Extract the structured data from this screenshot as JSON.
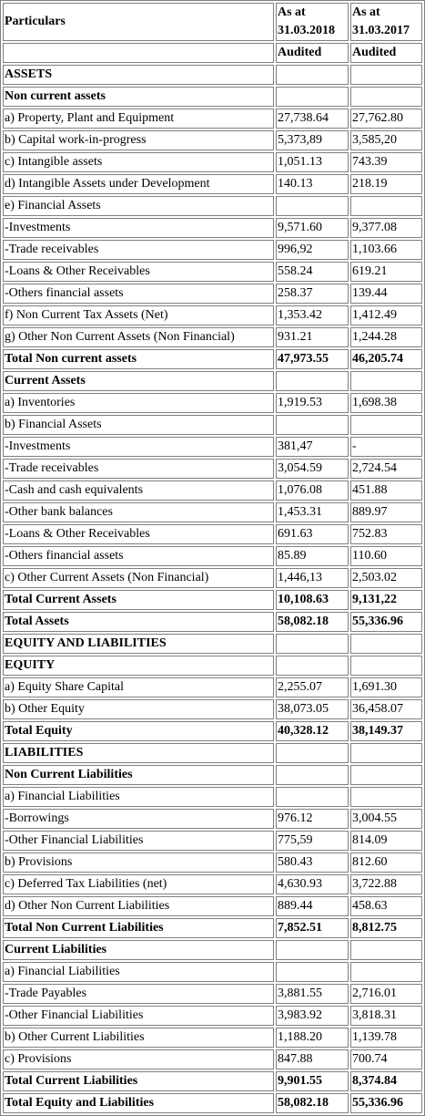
{
  "header": {
    "particulars": "Particulars",
    "col1_line1": "As at",
    "col1_line2": "31.03.2018",
    "col2_line1": "As at",
    "col2_line2": "31.03.2017",
    "col1_status": "Audited",
    "col2_status": "Audited"
  },
  "rows": [
    {
      "label": "ASSETS",
      "v1": "",
      "v2": "",
      "bold": true
    },
    {
      "label": "Non current assets",
      "v1": "",
      "v2": "",
      "bold": true
    },
    {
      "label": "a) Property, Plant and Equipment",
      "v1": "27,738.64",
      "v2": "27,762.80",
      "bold": false
    },
    {
      "label": "b) Capital work-in-progress",
      "v1": "5,373,89",
      "v2": "3,585,20",
      "bold": false
    },
    {
      "label": "c) Intangible assets",
      "v1": "1,051.13",
      "v2": "743.39",
      "bold": false
    },
    {
      "label": "d) Intangible Assets under Development",
      "v1": "140.13",
      "v2": "218.19",
      "bold": false
    },
    {
      "label": "e) Financial Assets",
      "v1": "",
      "v2": "",
      "bold": false
    },
    {
      "label": "-Investments",
      "v1": "9,571.60",
      "v2": "9,377.08",
      "bold": false
    },
    {
      "label": "-Trade receivables",
      "v1": "996,92",
      "v2": "1,103.66",
      "bold": false
    },
    {
      "label": "-Loans & Other Receivables",
      "v1": "558.24",
      "v2": "619.21",
      "bold": false
    },
    {
      "label": "-Others financial assets",
      "v1": "258.37",
      "v2": "139.44",
      "bold": false
    },
    {
      "label": "f) Non Current Tax Assets (Net)",
      "v1": "1,353.42",
      "v2": "1,412.49",
      "bold": false
    },
    {
      "label": "g) Other Non Current Assets (Non Financial)",
      "v1": "931.21",
      "v2": "1,244.28",
      "bold": false
    },
    {
      "label": "Total Non current assets",
      "v1": "47,973.55",
      "v2": "46,205.74",
      "bold": true
    },
    {
      "label": "Current Assets",
      "v1": "",
      "v2": "",
      "bold": true
    },
    {
      "label": "a) Inventories",
      "v1": "1,919.53",
      "v2": "1,698.38",
      "bold": false
    },
    {
      "label": "b) Financial Assets",
      "v1": "",
      "v2": "",
      "bold": false
    },
    {
      "label": "-Investments",
      "v1": "381,47",
      "v2": "-",
      "bold": false
    },
    {
      "label": "-Trade receivables",
      "v1": "3,054.59",
      "v2": "2,724.54",
      "bold": false
    },
    {
      "label": "-Cash and cash equivalents",
      "v1": "1,076.08",
      "v2": "451.88",
      "bold": false
    },
    {
      "label": "-Other bank balances",
      "v1": "1,453.31",
      "v2": "889.97",
      "bold": false
    },
    {
      "label": "-Loans & Other Receivables",
      "v1": "691.63",
      "v2": "752.83",
      "bold": false
    },
    {
      "label": "-Others financial assets",
      "v1": "85.89",
      "v2": "110.60",
      "bold": false
    },
    {
      "label": "c) Other Current Assets (Non Financial)",
      "v1": "1,446,13",
      "v2": "2,503.02",
      "bold": false
    },
    {
      "label": "Total Current Assets",
      "v1": "10,108.63",
      "v2": "9,131,22",
      "bold": true
    },
    {
      "label": "Total Assets",
      "v1": "58,082.18",
      "v2": "55,336.96",
      "bold": true
    },
    {
      "label": "EQUITY AND LIABILITIES",
      "v1": "",
      "v2": "",
      "bold": true
    },
    {
      "label": "EQUITY",
      "v1": "",
      "v2": "",
      "bold": true
    },
    {
      "label": "a) Equity Share Capital",
      "v1": "2,255.07",
      "v2": "1,691.30",
      "bold": false
    },
    {
      "label": "b) Other Equity",
      "v1": "38,073.05",
      "v2": "36,458.07",
      "bold": false
    },
    {
      "label": "Total Equity",
      "v1": "40,328.12",
      "v2": "38,149.37",
      "bold": true
    },
    {
      "label": "LIABILITIES",
      "v1": "",
      "v2": "",
      "bold": true
    },
    {
      "label": "Non Current Liabilities",
      "v1": "",
      "v2": "",
      "bold": true
    },
    {
      "label": "a) Financial Liabilities",
      "v1": "",
      "v2": "",
      "bold": false
    },
    {
      "label": "-Borrowings",
      "v1": "976.12",
      "v2": "3,004.55",
      "bold": false
    },
    {
      "label": "-Other Financial Liabilities",
      "v1": "775,59",
      "v2": "814.09",
      "bold": false
    },
    {
      "label": "b) Provisions",
      "v1": "580.43",
      "v2": "812.60",
      "bold": false
    },
    {
      "label": "c) Deferred Tax Liabilities (net)",
      "v1": "4,630.93",
      "v2": "3,722.88",
      "bold": false
    },
    {
      "label": "d) Other Non Current Liabilities",
      "v1": "889.44",
      "v2": "458.63",
      "bold": false
    },
    {
      "label": "Total Non Current Liabilities",
      "v1": "7,852.51",
      "v2": "8,812.75",
      "bold": true
    },
    {
      "label": "Current Liabilities",
      "v1": "",
      "v2": "",
      "bold": true
    },
    {
      "label": "a) Financial Liabilities",
      "v1": "",
      "v2": "",
      "bold": false
    },
    {
      "label": "-Trade Payables",
      "v1": "3,881.55",
      "v2": "2,716.01",
      "bold": false
    },
    {
      "label": "-Other Financial Liabilities",
      "v1": "3,983.92",
      "v2": "3,818.31",
      "bold": false
    },
    {
      "label": "b) Other Current Liabilities",
      "v1": "1,188.20",
      "v2": "1,139.78",
      "bold": false
    },
    {
      "label": "c) Provisions",
      "v1": "847.88",
      "v2": "700.74",
      "bold": false
    },
    {
      "label": "Total Current Liabilities",
      "v1": "9,901.55",
      "v2": "8,374.84",
      "bold": true
    },
    {
      "label": "Total Equity and Liabilities",
      "v1": "58,082.18",
      "v2": "55,336.96",
      "bold": true
    }
  ]
}
